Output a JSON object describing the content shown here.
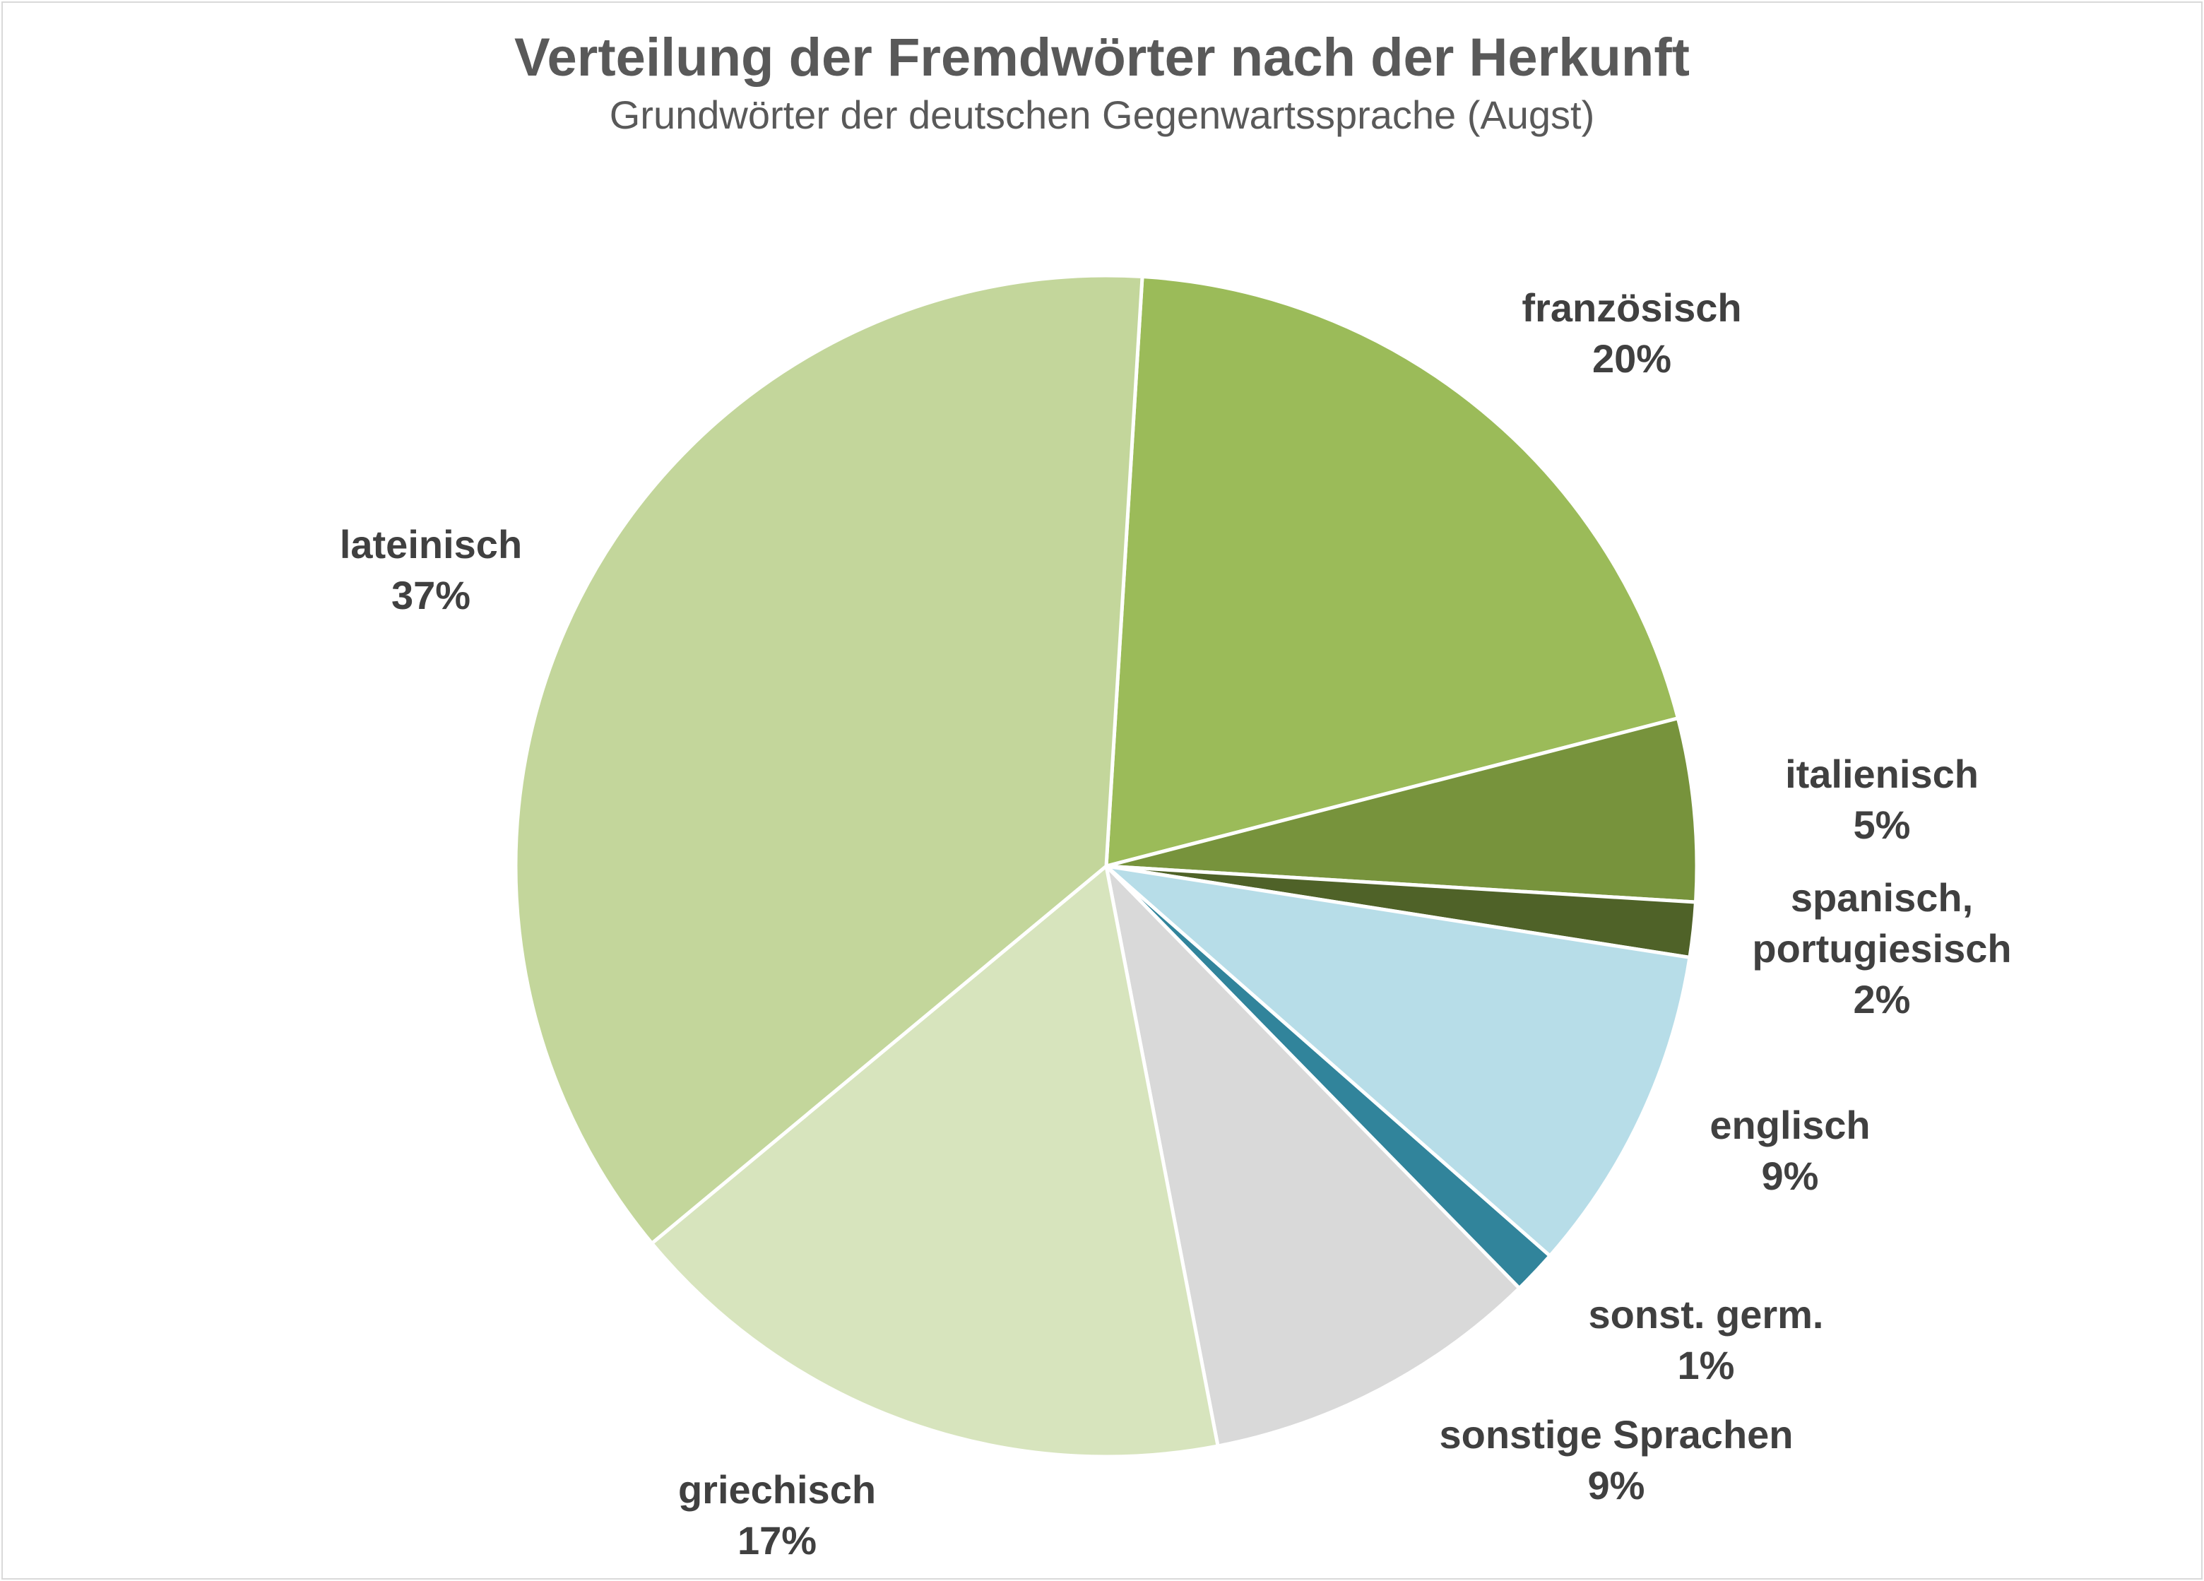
{
  "chart_data": {
    "type": "pie",
    "title": "Verteilung der Fremdwörter nach der Herkunft",
    "subtitle": "Grundwörter der deutschen Gegenwartssprache (Augst)",
    "slices": [
      {
        "label": "französisch",
        "value": 20,
        "display": "20%",
        "color": "#9bbb59"
      },
      {
        "label": "italienisch",
        "value": 5,
        "display": "5%",
        "color": "#77933c"
      },
      {
        "label": "spanisch, portugiesisch",
        "value": 1.5,
        "display": "2%",
        "color": "#4f6228"
      },
      {
        "label": "englisch",
        "value": 9,
        "display": "9%",
        "color": "#b7dde8"
      },
      {
        "label": "sonst. germ.",
        "value": 1.2,
        "display": "1%",
        "color": "#31849b"
      },
      {
        "label": "sonstige Sprachen",
        "value": 9.3,
        "display": "9%",
        "color": "#d9d9d9"
      },
      {
        "label": "griechisch",
        "value": 17,
        "display": "17%",
        "color": "#d7e4bd"
      },
      {
        "label": "lateinisch",
        "value": 37,
        "display": "37%",
        "color": "#c3d69b"
      }
    ],
    "legend": "none",
    "start_angle": "top",
    "direction": "clockwise"
  }
}
